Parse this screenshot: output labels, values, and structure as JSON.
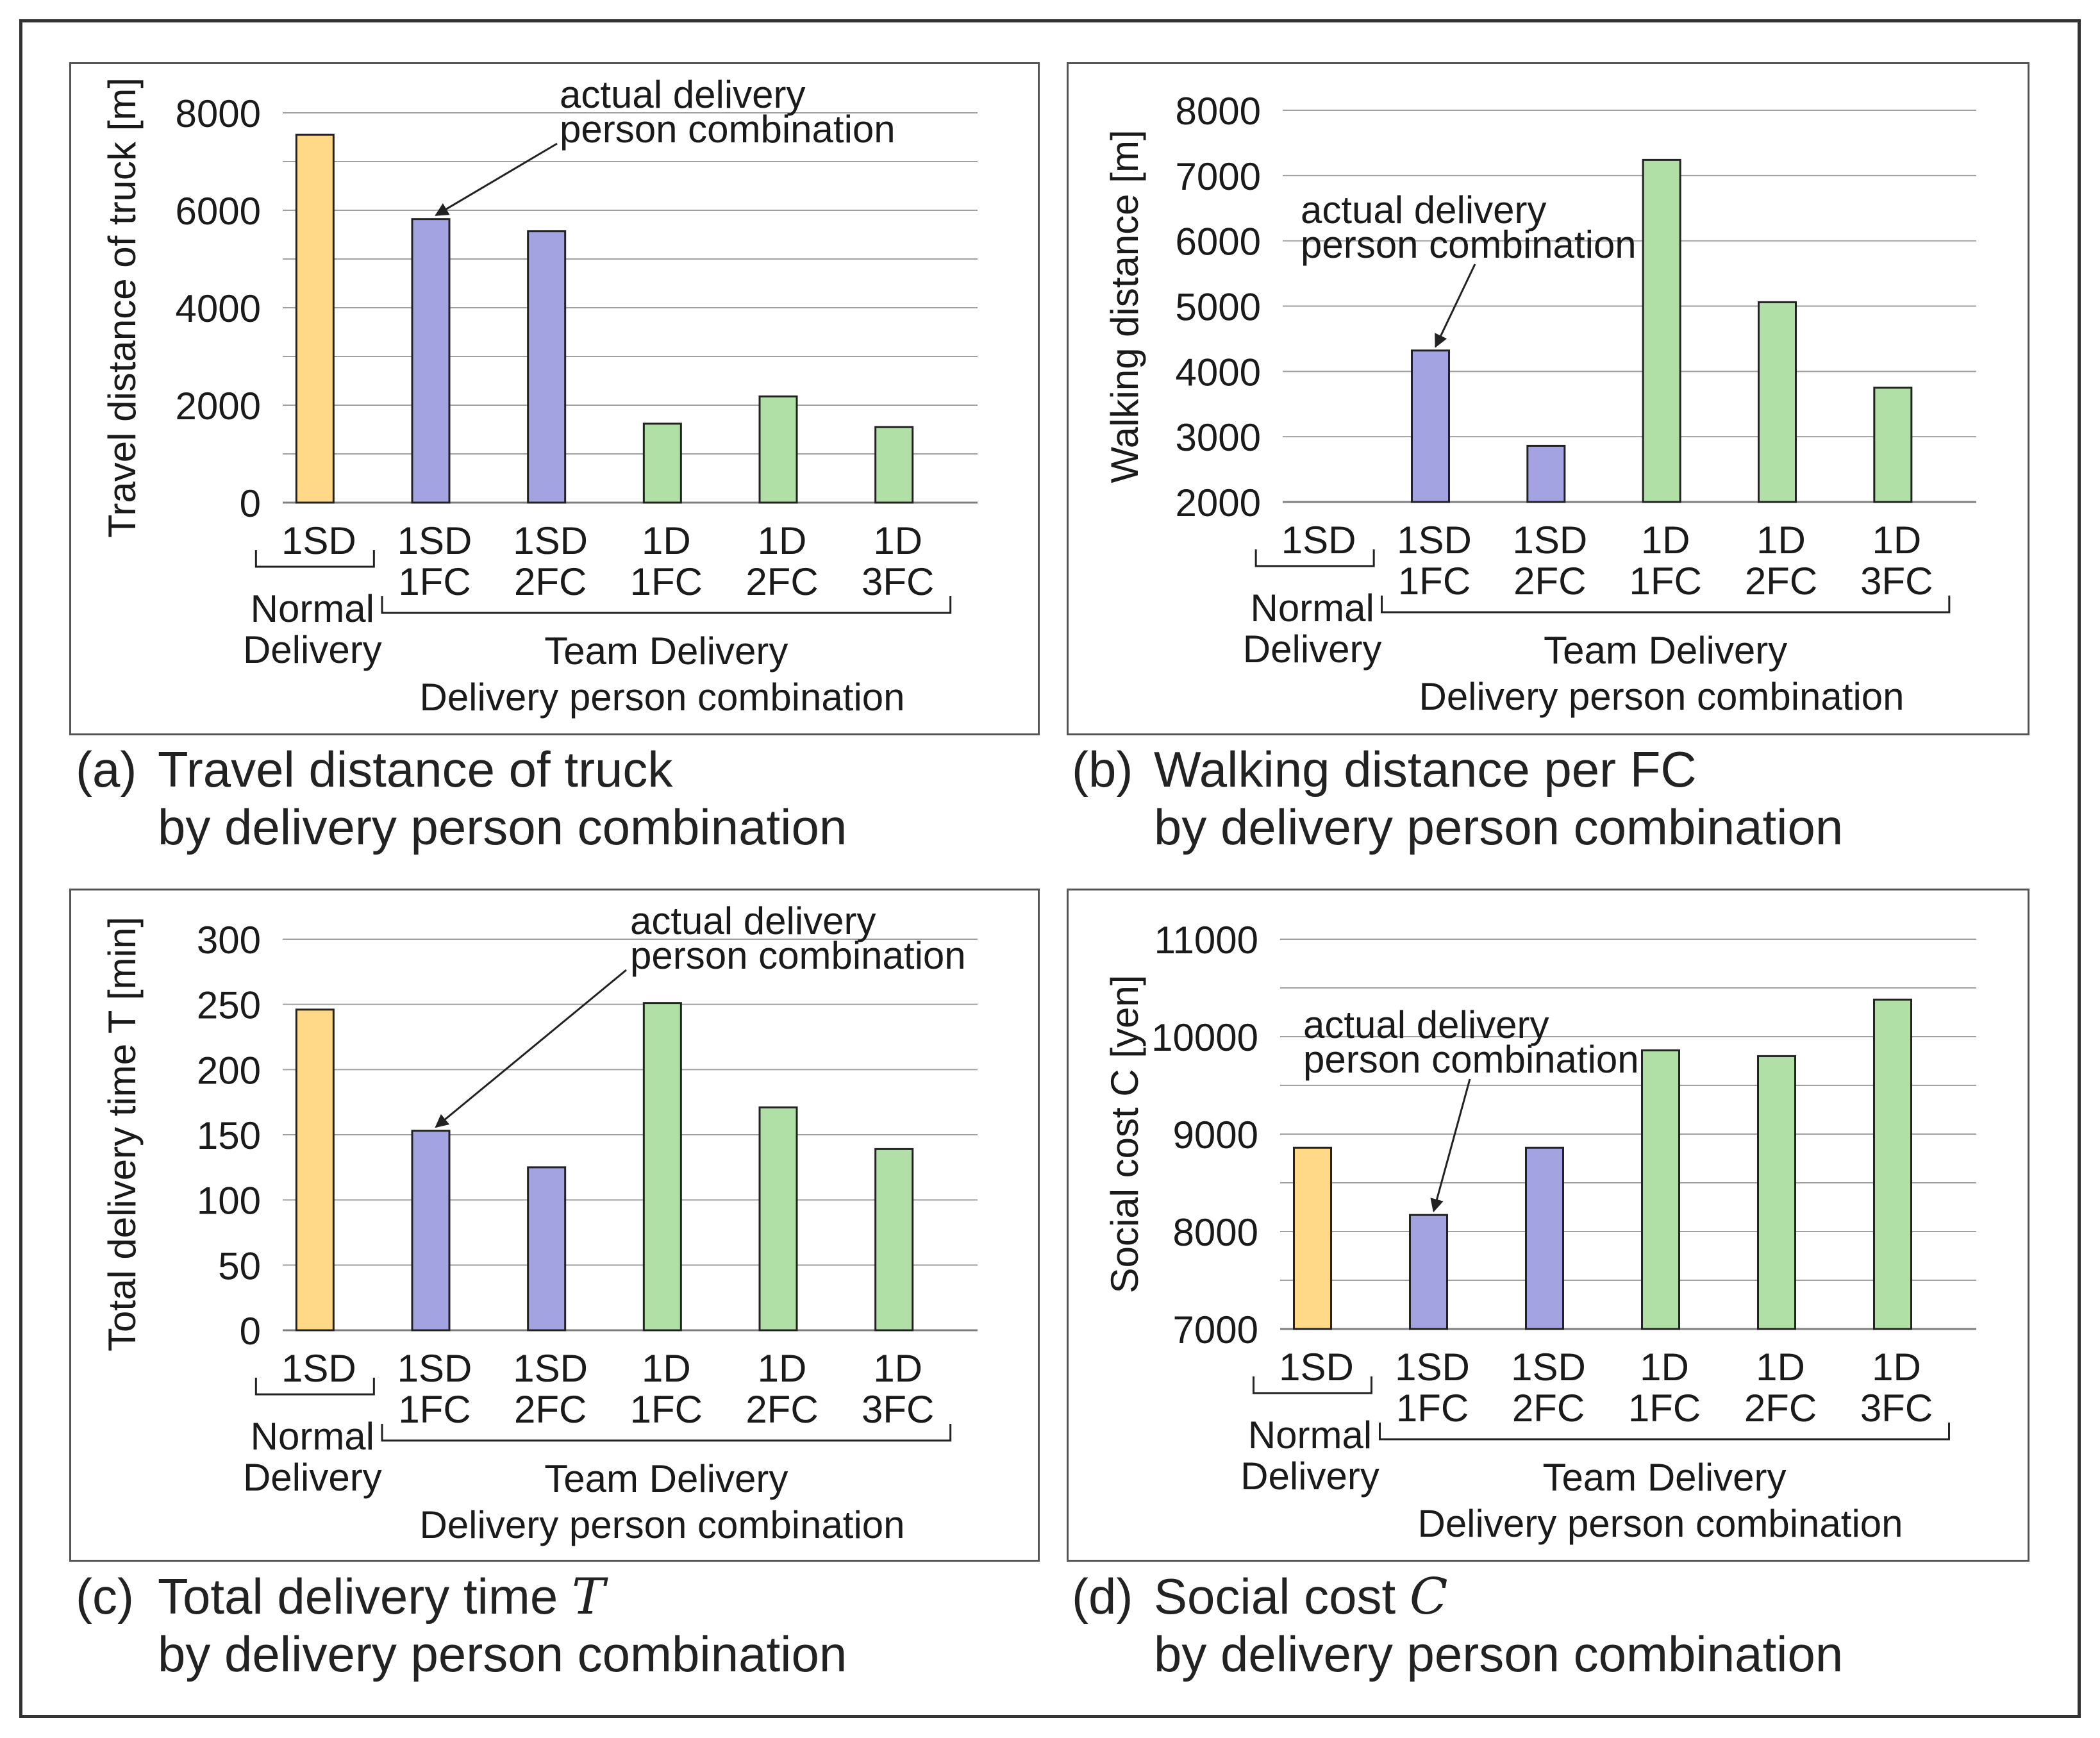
{
  "colors": {
    "normal": "#ffd888",
    "team_sd": "#a3a3e2",
    "team_d": "#b1e0a6",
    "grid": "#a0a0a0",
    "axis": "#7f7f7f"
  },
  "common": {
    "normal_group_label": [
      "Normal",
      "Delivery"
    ],
    "team_group_label": "Team Delivery",
    "annotation": [
      "actual delivery",
      "person combination"
    ]
  },
  "chart_data": [
    {
      "id": "a",
      "type": "bar",
      "title_label": "(a)",
      "title_line1": "Travel distance of truck",
      "title_var": "",
      "title_line2": "by delivery person combination",
      "ylabel": "Travel distance of truck [m]",
      "xlabel": "Delivery person combination",
      "categories": [
        [
          "1SD"
        ],
        [
          "1SD",
          "1FC"
        ],
        [
          "1SD",
          "2FC"
        ],
        [
          "1D",
          "1FC"
        ],
        [
          "1D",
          "2FC"
        ],
        [
          "1D",
          "3FC"
        ]
      ],
      "groups": [
        "normal",
        "team_sd",
        "team_sd",
        "team_d",
        "team_d",
        "team_d"
      ],
      "values": [
        7550,
        5820,
        5570,
        1620,
        2180,
        1550
      ],
      "ylim": [
        0,
        8000
      ],
      "yticks": [
        "0",
        "2000",
        "4000",
        "6000",
        "8000"
      ],
      "grid_step": 1000,
      "annotation_target": 1
    },
    {
      "id": "b",
      "type": "bar",
      "title_label": "(b)",
      "title_line1": "Walking distance per FC",
      "title_var": "",
      "title_line2": "by delivery person combination",
      "ylabel": "Walking distance [m]",
      "xlabel": "Delivery person combination",
      "categories": [
        [
          "1SD"
        ],
        [
          "1SD",
          "1FC"
        ],
        [
          "1SD",
          "2FC"
        ],
        [
          "1D",
          "1FC"
        ],
        [
          "1D",
          "2FC"
        ],
        [
          "1D",
          "3FC"
        ]
      ],
      "groups": [
        "normal",
        "team_sd",
        "team_sd",
        "team_d",
        "team_d",
        "team_d"
      ],
      "values": [
        null,
        4320,
        2860,
        7240,
        5060,
        3750
      ],
      "ylim": [
        2000,
        8000
      ],
      "yticks": [
        "2000",
        "3000",
        "4000",
        "5000",
        "6000",
        "7000",
        "8000"
      ],
      "grid_step": 1000,
      "annotation_target": 1
    },
    {
      "id": "c",
      "type": "bar",
      "title_label": "(c)",
      "title_line1": "Total delivery time ",
      "title_var": "T",
      "title_line2": "by delivery person combination",
      "ylabel": "Total delivery time T [min]",
      "xlabel": "Delivery person combination",
      "categories": [
        [
          "1SD"
        ],
        [
          "1SD",
          "1FC"
        ],
        [
          "1SD",
          "2FC"
        ],
        [
          "1D",
          "1FC"
        ],
        [
          "1D",
          "2FC"
        ],
        [
          "1D",
          "3FC"
        ]
      ],
      "groups": [
        "normal",
        "team_sd",
        "team_sd",
        "team_d",
        "team_d",
        "team_d"
      ],
      "values": [
        246,
        153,
        125,
        251,
        171,
        139
      ],
      "ylim": [
        0,
        300
      ],
      "yticks": [
        "0",
        "50",
        "100",
        "150",
        "200",
        "250",
        "300"
      ],
      "grid_step": 50,
      "annotation_target": 1
    },
    {
      "id": "d",
      "type": "bar",
      "title_label": "(d)",
      "title_line1": "Social cost ",
      "title_var": "C",
      "title_line2": "by delivery person combination",
      "ylabel": "Social cost C [yen]",
      "xlabel": "Delivery person combination",
      "categories": [
        [
          "1SD"
        ],
        [
          "1SD",
          "1FC"
        ],
        [
          "1SD",
          "2FC"
        ],
        [
          "1D",
          "1FC"
        ],
        [
          "1D",
          "2FC"
        ],
        [
          "1D",
          "3FC"
        ]
      ],
      "groups": [
        "normal",
        "team_sd",
        "team_sd",
        "team_d",
        "team_d",
        "team_d"
      ],
      "values": [
        8860,
        8170,
        8860,
        9860,
        9800,
        10380
      ],
      "ylim": [
        7000,
        11000
      ],
      "yticks": [
        "7000",
        "8000",
        "9000",
        "10000",
        "11000"
      ],
      "grid_step": 500,
      "annotation_target": 1
    }
  ]
}
